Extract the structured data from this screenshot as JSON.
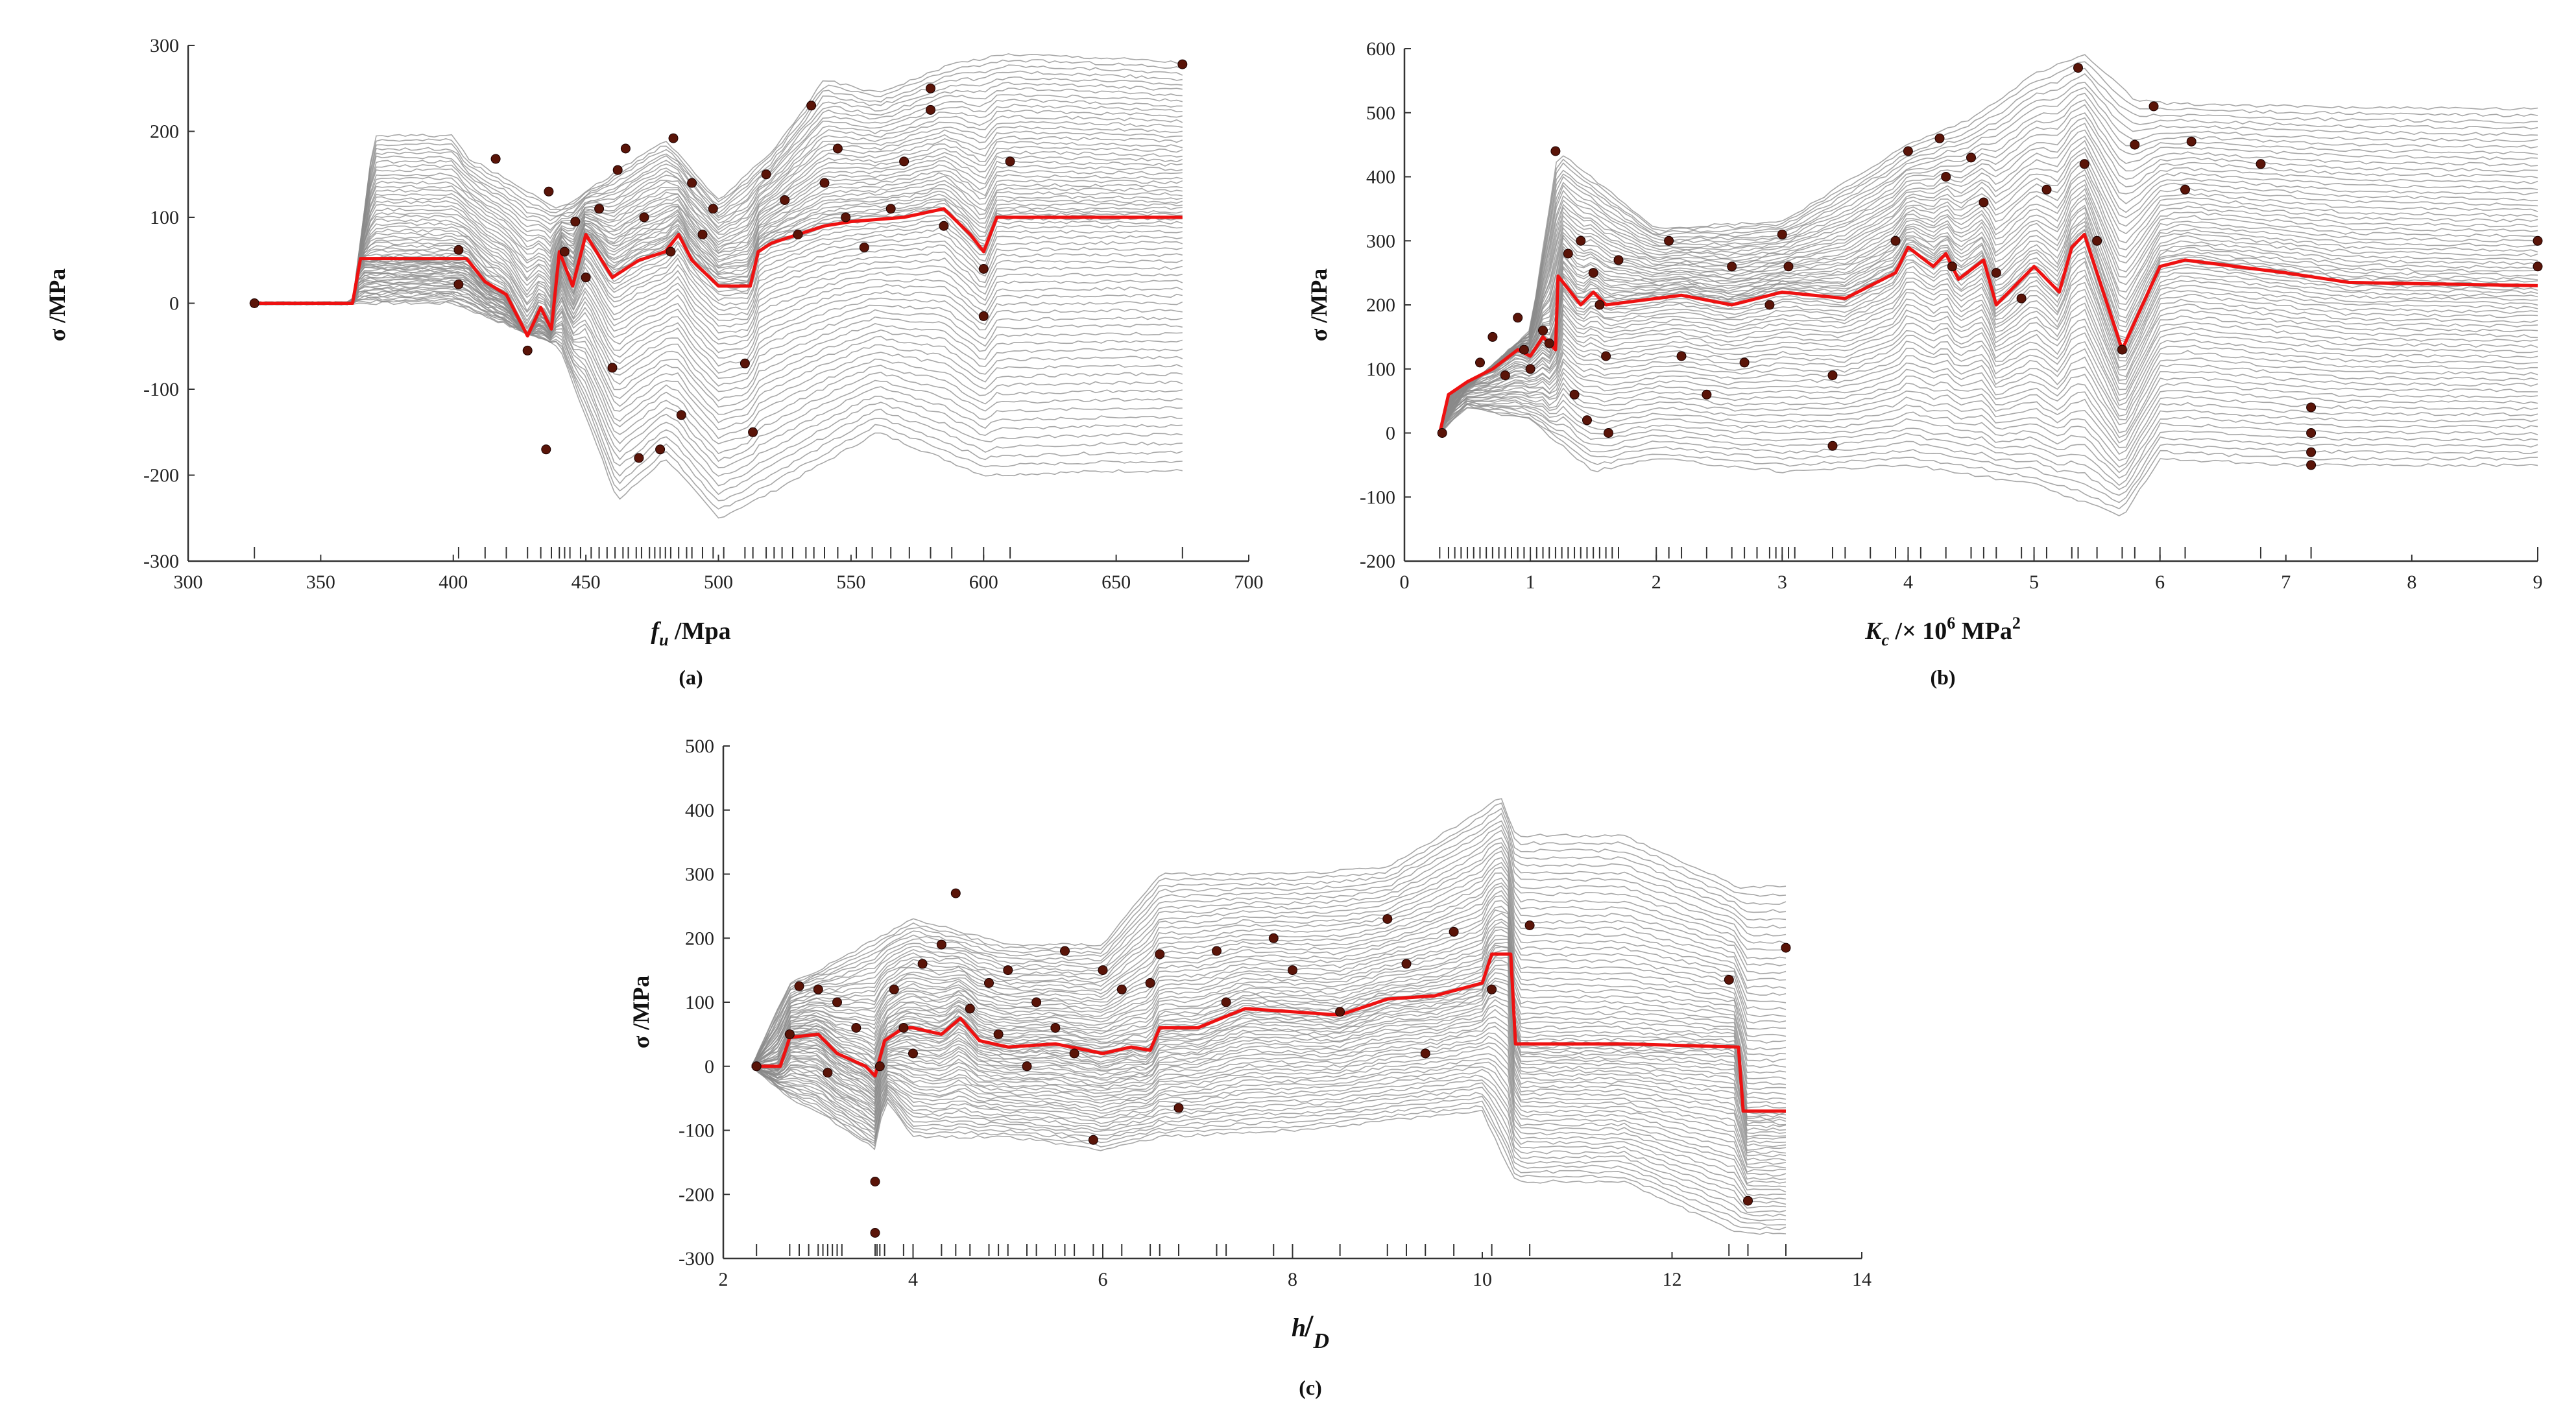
{
  "colors": {
    "ice": "#8a8a8a",
    "pdp": "#ee1111",
    "point": "#5a1408",
    "axis": "#333333"
  },
  "chart_data": [
    {
      "type": "line",
      "panel": "a",
      "caption": "(a)",
      "title": "",
      "xlabel_main": "f",
      "xlabel_sub": "u",
      "xlabel_rest": " /Mpa",
      "ylabel": "σ /MPa",
      "xlim": [
        300,
        700
      ],
      "ylim": [
        -300,
        300
      ],
      "xticks": [
        300,
        350,
        400,
        450,
        500,
        550,
        600,
        650,
        700
      ],
      "yticks": [
        -300,
        -200,
        -100,
        0,
        100,
        200,
        300
      ],
      "series": [
        {
          "name": "PDP average",
          "x": [
            325,
            362,
            365,
            405,
            412,
            420,
            428,
            433,
            437,
            440,
            445,
            450,
            460,
            470,
            480,
            485,
            490,
            500,
            512,
            515,
            520,
            530,
            540,
            550,
            570,
            585,
            595,
            600,
            605,
            610,
            640,
            675
          ],
          "y": [
            0,
            0,
            52,
            52,
            25,
            10,
            -38,
            -5,
            -30,
            60,
            20,
            80,
            30,
            50,
            60,
            80,
            50,
            20,
            20,
            60,
            70,
            80,
            90,
            95,
            100,
            110,
            80,
            60,
            100,
            100,
            100,
            100
          ]
        },
        {
          "name": "ICE curve max",
          "x": [
            325,
            362,
            370,
            400,
            405,
            440,
            480,
            500,
            520,
            540,
            560,
            590,
            610,
            650,
            675
          ],
          "y": [
            0,
            0,
            195,
            195,
            170,
            110,
            190,
            120,
            175,
            260,
            245,
            280,
            290,
            285,
            280
          ]
        },
        {
          "name": "ICE curve min",
          "x": [
            325,
            362,
            400,
            440,
            462,
            480,
            500,
            520,
            560,
            600,
            650,
            675
          ],
          "y": [
            0,
            0,
            0,
            -50,
            -230,
            -180,
            -250,
            -220,
            -150,
            -200,
            -195,
            -195
          ]
        }
      ],
      "points": [
        {
          "x": 325,
          "y": 0
        },
        {
          "x": 402,
          "y": 62
        },
        {
          "x": 402,
          "y": 22
        },
        {
          "x": 416,
          "y": 168
        },
        {
          "x": 428,
          "y": -55
        },
        {
          "x": 435,
          "y": -170
        },
        {
          "x": 436,
          "y": 130
        },
        {
          "x": 442,
          "y": 60
        },
        {
          "x": 446,
          "y": 95
        },
        {
          "x": 450,
          "y": 30
        },
        {
          "x": 455,
          "y": 110
        },
        {
          "x": 460,
          "y": -75
        },
        {
          "x": 462,
          "y": 155
        },
        {
          "x": 465,
          "y": 180
        },
        {
          "x": 470,
          "y": -180
        },
        {
          "x": 472,
          "y": 100
        },
        {
          "x": 478,
          "y": -170
        },
        {
          "x": 482,
          "y": 60
        },
        {
          "x": 483,
          "y": 192
        },
        {
          "x": 486,
          "y": -130
        },
        {
          "x": 490,
          "y": 140
        },
        {
          "x": 494,
          "y": 80
        },
        {
          "x": 498,
          "y": 110
        },
        {
          "x": 510,
          "y": -70
        },
        {
          "x": 513,
          "y": -150
        },
        {
          "x": 518,
          "y": 150
        },
        {
          "x": 525,
          "y": 120
        },
        {
          "x": 530,
          "y": 80
        },
        {
          "x": 535,
          "y": 230
        },
        {
          "x": 540,
          "y": 140
        },
        {
          "x": 545,
          "y": 180
        },
        {
          "x": 548,
          "y": 100
        },
        {
          "x": 555,
          "y": 65
        },
        {
          "x": 565,
          "y": 110
        },
        {
          "x": 570,
          "y": 165
        },
        {
          "x": 580,
          "y": 250
        },
        {
          "x": 580,
          "y": 225
        },
        {
          "x": 585,
          "y": 90
        },
        {
          "x": 600,
          "y": 40
        },
        {
          "x": 600,
          "y": -15
        },
        {
          "x": 610,
          "y": 165
        },
        {
          "x": 675,
          "y": 278
        }
      ],
      "rug": [
        325,
        402,
        412,
        420,
        428,
        433,
        437,
        440,
        442,
        444,
        448,
        452,
        455,
        458,
        461,
        464,
        466,
        469,
        471,
        474,
        476,
        478,
        480,
        482,
        485,
        488,
        490,
        494,
        498,
        502,
        510,
        513,
        518,
        521,
        524,
        528,
        533,
        536,
        540,
        545,
        552,
        558,
        565,
        572,
        580,
        588,
        600,
        610,
        675
      ]
    },
    {
      "type": "line",
      "panel": "b",
      "caption": "(b)",
      "title": "",
      "xlabel_main": "K",
      "xlabel_sub": "c",
      "xlabel_rest": " /× 10",
      "xlabel_sup": "6",
      "xlabel_unit": " MPa",
      "xlabel_sup2": "2",
      "ylabel": "σ /MPa",
      "xlim": [
        0,
        9
      ],
      "ylim": [
        -200,
        600
      ],
      "xticks": [
        0,
        1,
        2,
        3,
        4,
        5,
        6,
        7,
        8,
        9
      ],
      "yticks": [
        -200,
        -100,
        0,
        100,
        200,
        300,
        400,
        500,
        600
      ],
      "series": [
        {
          "name": "PDP average",
          "x": [
            0.28,
            0.35,
            0.5,
            0.7,
            0.9,
            1.0,
            1.1,
            1.2,
            1.22,
            1.4,
            1.5,
            1.6,
            2.0,
            2.2,
            2.6,
            3.0,
            3.5,
            3.9,
            4.0,
            4.2,
            4.3,
            4.4,
            4.6,
            4.7,
            5.0,
            5.2,
            5.3,
            5.4,
            5.7,
            6.0,
            6.2,
            7.0,
            7.5,
            9.0
          ],
          "y": [
            0,
            60,
            80,
            100,
            130,
            120,
            150,
            130,
            245,
            200,
            220,
            200,
            210,
            215,
            200,
            220,
            210,
            250,
            290,
            260,
            280,
            240,
            270,
            200,
            260,
            220,
            290,
            310,
            130,
            260,
            270,
            250,
            235,
            230
          ]
        },
        {
          "name": "ICE curve max",
          "x": [
            0.28,
            0.5,
            1.0,
            1.22,
            2.0,
            3.0,
            4.0,
            4.5,
            5.0,
            5.4,
            5.8,
            6.0,
            7.0,
            9.0
          ],
          "y": [
            0,
            70,
            160,
            440,
            320,
            330,
            450,
            490,
            560,
            590,
            520,
            515,
            510,
            505
          ]
        },
        {
          "name": "ICE curve min",
          "x": [
            0.28,
            0.5,
            1.0,
            1.5,
            2.0,
            3.0,
            4.0,
            5.0,
            5.7,
            6.0,
            7.0,
            9.0
          ],
          "y": [
            0,
            40,
            20,
            -60,
            -40,
            -60,
            -50,
            -80,
            -130,
            -40,
            -50,
            -50
          ]
        }
      ],
      "points": [
        {
          "x": 0.3,
          "y": 0
        },
        {
          "x": 0.6,
          "y": 110
        },
        {
          "x": 0.7,
          "y": 150
        },
        {
          "x": 0.8,
          "y": 90
        },
        {
          "x": 0.9,
          "y": 180
        },
        {
          "x": 0.95,
          "y": 130
        },
        {
          "x": 1.0,
          "y": 100
        },
        {
          "x": 1.1,
          "y": 160
        },
        {
          "x": 1.15,
          "y": 140
        },
        {
          "x": 1.2,
          "y": 440
        },
        {
          "x": 1.3,
          "y": 280
        },
        {
          "x": 1.35,
          "y": 60
        },
        {
          "x": 1.4,
          "y": 300
        },
        {
          "x": 1.45,
          "y": 20
        },
        {
          "x": 1.5,
          "y": 250
        },
        {
          "x": 1.55,
          "y": 200
        },
        {
          "x": 1.6,
          "y": 120
        },
        {
          "x": 1.62,
          "y": 0
        },
        {
          "x": 1.7,
          "y": 270
        },
        {
          "x": 2.1,
          "y": 300
        },
        {
          "x": 2.2,
          "y": 120
        },
        {
          "x": 2.4,
          "y": 60
        },
        {
          "x": 2.6,
          "y": 260
        },
        {
          "x": 2.7,
          "y": 110
        },
        {
          "x": 2.9,
          "y": 200
        },
        {
          "x": 3.0,
          "y": 310
        },
        {
          "x": 3.05,
          "y": 260
        },
        {
          "x": 3.4,
          "y": -20
        },
        {
          "x": 3.4,
          "y": 90
        },
        {
          "x": 3.9,
          "y": 300
        },
        {
          "x": 4.0,
          "y": 440
        },
        {
          "x": 4.25,
          "y": 460
        },
        {
          "x": 4.3,
          "y": 400
        },
        {
          "x": 4.35,
          "y": 260
        },
        {
          "x": 4.5,
          "y": 430
        },
        {
          "x": 4.6,
          "y": 360
        },
        {
          "x": 4.7,
          "y": 250
        },
        {
          "x": 4.9,
          "y": 210
        },
        {
          "x": 5.1,
          "y": 380
        },
        {
          "x": 5.35,
          "y": 570
        },
        {
          "x": 5.4,
          "y": 420
        },
        {
          "x": 5.5,
          "y": 300
        },
        {
          "x": 5.7,
          "y": 130
        },
        {
          "x": 5.8,
          "y": 450
        },
        {
          "x": 5.95,
          "y": 510
        },
        {
          "x": 6.2,
          "y": 380
        },
        {
          "x": 6.25,
          "y": 455
        },
        {
          "x": 6.8,
          "y": 420
        },
        {
          "x": 7.2,
          "y": 40
        },
        {
          "x": 7.2,
          "y": 0
        },
        {
          "x": 7.2,
          "y": -30
        },
        {
          "x": 7.2,
          "y": -50
        },
        {
          "x": 9.0,
          "y": 300
        },
        {
          "x": 9.0,
          "y": 260
        }
      ],
      "rug": [
        0.28,
        0.35,
        0.4,
        0.45,
        0.5,
        0.55,
        0.6,
        0.65,
        0.7,
        0.75,
        0.8,
        0.85,
        0.9,
        0.95,
        1.0,
        1.05,
        1.1,
        1.15,
        1.2,
        1.25,
        1.3,
        1.35,
        1.4,
        1.45,
        1.5,
        1.55,
        1.6,
        1.65,
        1.7,
        2.0,
        2.1,
        2.2,
        2.4,
        2.6,
        2.7,
        2.8,
        2.9,
        2.95,
        3.0,
        3.05,
        3.1,
        3.4,
        3.5,
        3.7,
        3.9,
        4.0,
        4.1,
        4.3,
        4.5,
        4.6,
        4.7,
        4.9,
        5.0,
        5.1,
        5.3,
        5.35,
        5.5,
        5.7,
        5.8,
        6.0,
        6.2,
        6.8,
        7.2,
        9.0
      ]
    },
    {
      "type": "line",
      "panel": "c",
      "caption": "(c)",
      "title": "",
      "xlabel_main": "h",
      "xlabel_sub": "D",
      "xlabel_rest": "",
      "ylabel": "σ /MPa",
      "xlim": [
        2,
        14
      ],
      "ylim": [
        -300,
        500
      ],
      "xticks": [
        2,
        4,
        6,
        8,
        10,
        12,
        14
      ],
      "yticks": [
        -300,
        -200,
        -100,
        0,
        100,
        200,
        300,
        400,
        500
      ],
      "series": [
        {
          "name": "PDP average",
          "x": [
            2.3,
            2.6,
            2.7,
            3.0,
            3.2,
            3.5,
            3.6,
            3.7,
            3.9,
            4.0,
            4.3,
            4.5,
            4.7,
            5.0,
            5.5,
            6.0,
            6.3,
            6.5,
            6.6,
            7.0,
            7.5,
            8.0,
            8.5,
            9.0,
            9.5,
            10.0,
            10.1,
            10.3,
            10.35,
            11.5,
            12.7,
            12.75,
            13.2
          ],
          "y": [
            0,
            0,
            45,
            50,
            20,
            0,
            -15,
            40,
            60,
            60,
            50,
            75,
            40,
            30,
            35,
            20,
            30,
            25,
            60,
            60,
            90,
            85,
            80,
            105,
            110,
            130,
            175,
            175,
            35,
            35,
            30,
            -70,
            -70
          ]
        },
        {
          "name": "ICE curve max",
          "x": [
            2.3,
            2.7,
            3.0,
            4.0,
            5.0,
            6.0,
            6.6,
            8.0,
            9.0,
            10.0,
            10.2,
            10.35,
            11.5,
            12.7,
            13.2
          ],
          "y": [
            0,
            130,
            150,
            230,
            190,
            190,
            300,
            300,
            310,
            400,
            420,
            360,
            360,
            280,
            280
          ]
        },
        {
          "name": "ICE curve min",
          "x": [
            2.3,
            2.7,
            3.0,
            3.6,
            3.7,
            4.0,
            5.0,
            6.0,
            6.6,
            8.0,
            10.0,
            10.35,
            11.5,
            12.7,
            13.2
          ],
          "y": [
            0,
            -50,
            -70,
            -130,
            -50,
            -110,
            -110,
            -130,
            -110,
            -100,
            -70,
            -180,
            -180,
            -260,
            -260
          ]
        }
      ],
      "points": [
        {
          "x": 2.35,
          "y": 0
        },
        {
          "x": 2.7,
          "y": 50
        },
        {
          "x": 2.8,
          "y": 125
        },
        {
          "x": 3.0,
          "y": 120
        },
        {
          "x": 3.1,
          "y": -10
        },
        {
          "x": 3.2,
          "y": 100
        },
        {
          "x": 3.4,
          "y": 60
        },
        {
          "x": 3.6,
          "y": -180
        },
        {
          "x": 3.6,
          "y": -260
        },
        {
          "x": 3.65,
          "y": 0
        },
        {
          "x": 3.8,
          "y": 120
        },
        {
          "x": 3.9,
          "y": 60
        },
        {
          "x": 4.0,
          "y": 20
        },
        {
          "x": 4.1,
          "y": 160
        },
        {
          "x": 4.3,
          "y": 190
        },
        {
          "x": 4.45,
          "y": 270
        },
        {
          "x": 4.6,
          "y": 90
        },
        {
          "x": 4.8,
          "y": 130
        },
        {
          "x": 4.9,
          "y": 50
        },
        {
          "x": 5.0,
          "y": 150
        },
        {
          "x": 5.2,
          "y": 0
        },
        {
          "x": 5.3,
          "y": 100
        },
        {
          "x": 5.5,
          "y": 60
        },
        {
          "x": 5.6,
          "y": 180
        },
        {
          "x": 5.7,
          "y": 20
        },
        {
          "x": 5.9,
          "y": -115
        },
        {
          "x": 6.0,
          "y": 150
        },
        {
          "x": 6.2,
          "y": 120
        },
        {
          "x": 6.5,
          "y": 130
        },
        {
          "x": 6.6,
          "y": 175
        },
        {
          "x": 6.8,
          "y": -65
        },
        {
          "x": 7.2,
          "y": 180
        },
        {
          "x": 7.3,
          "y": 100
        },
        {
          "x": 7.8,
          "y": 200
        },
        {
          "x": 8.0,
          "y": 150
        },
        {
          "x": 8.5,
          "y": 85
        },
        {
          "x": 9.0,
          "y": 230
        },
        {
          "x": 9.2,
          "y": 160
        },
        {
          "x": 9.4,
          "y": 20
        },
        {
          "x": 9.7,
          "y": 210
        },
        {
          "x": 10.1,
          "y": 120
        },
        {
          "x": 10.5,
          "y": 220
        },
        {
          "x": 12.6,
          "y": 135
        },
        {
          "x": 12.8,
          "y": -210
        },
        {
          "x": 13.2,
          "y": 185
        }
      ],
      "rug": [
        2.35,
        2.7,
        2.8,
        2.9,
        3.0,
        3.05,
        3.1,
        3.15,
        3.2,
        3.25,
        3.6,
        3.62,
        3.65,
        3.7,
        3.9,
        4.0,
        4.3,
        4.45,
        4.6,
        4.8,
        4.9,
        5.0,
        5.2,
        5.3,
        5.5,
        5.6,
        5.7,
        5.9,
        6.0,
        6.2,
        6.5,
        6.6,
        6.8,
        7.2,
        7.3,
        7.8,
        8.0,
        8.5,
        9.0,
        9.2,
        9.4,
        9.7,
        10.1,
        10.5,
        12.6,
        12.8,
        13.2
      ]
    }
  ]
}
